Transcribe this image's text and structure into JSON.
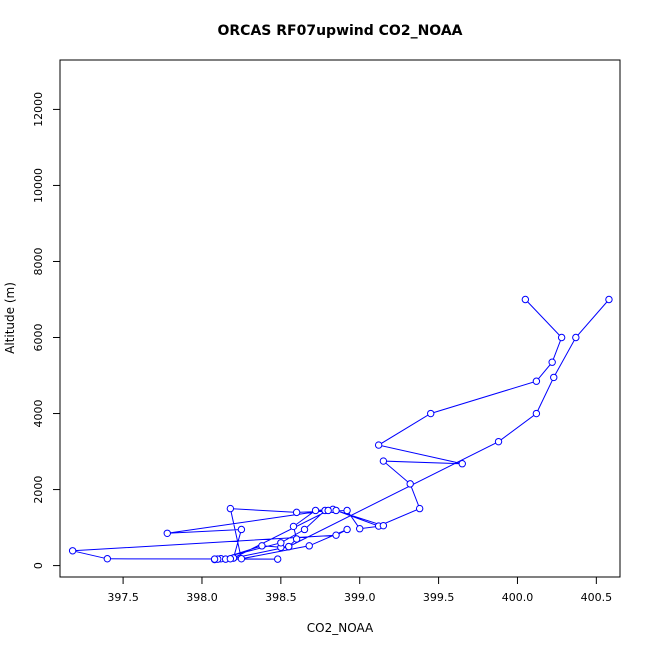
{
  "chart_data": {
    "type": "line",
    "title": "ORCAS RF07upwind CO2_NOAA",
    "xlabel": "CO2_NOAA",
    "ylabel": "Altitude (m)",
    "xlim": [
      397.1,
      400.65
    ],
    "ylim": [
      -300,
      13300
    ],
    "xticks": [
      "397.5",
      "398.0",
      "398.5",
      "399.0",
      "399.5",
      "400.0",
      "400.5"
    ],
    "yticks": [
      "0",
      "2000",
      "4000",
      "6000",
      "8000",
      "10000",
      "12000"
    ],
    "color": "#0000ff",
    "series": [
      {
        "marker": "open-circle",
        "x": [
          400.05,
          400.28,
          400.22,
          400.12,
          399.45,
          399.12,
          399.65,
          399.15,
          399.32,
          399.38,
          399.12,
          398.83,
          398.72,
          398.58,
          398.6,
          398.55,
          398.5,
          398.38,
          398.12,
          398.08,
          398.2,
          398.25,
          397.78,
          398.78,
          398.65,
          398.5,
          398.1,
          398.48,
          397.4,
          397.18,
          398.85,
          398.92,
          398.68,
          398.25,
          398.18,
          398.6,
          398.92,
          399.0,
          399.15,
          398.85,
          398.8,
          398.2,
          398.15,
          398.08,
          398.18,
          398.55,
          399.88,
          400.12,
          400.23,
          400.37,
          400.58
        ],
        "y": [
          7000,
          6000,
          5350,
          4850,
          4000,
          3170,
          2680,
          2750,
          2150,
          1500,
          1040,
          1480,
          1450,
          1030,
          700,
          500,
          480,
          520,
          180,
          160,
          200,
          950,
          850,
          1450,
          950,
          600,
          170,
          170,
          180,
          390,
          800,
          950,
          520,
          180,
          1500,
          1400,
          1450,
          970,
          1050,
          1450,
          1450,
          200,
          170,
          170,
          180,
          500,
          3260,
          4000,
          4950,
          6000,
          7000
        ]
      }
    ]
  }
}
